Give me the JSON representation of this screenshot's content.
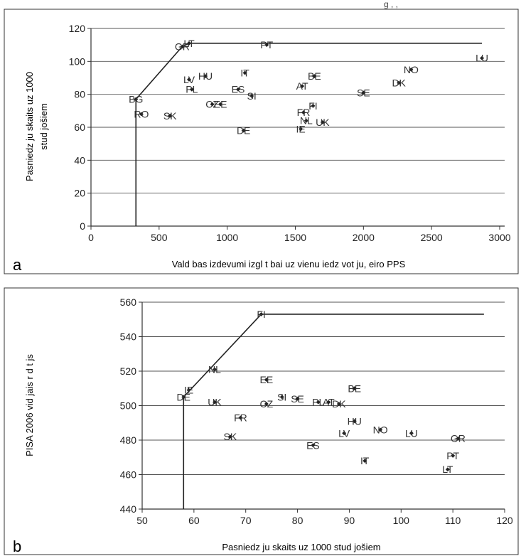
{
  "page": {
    "top_fragment": "g , ,"
  },
  "chart_data": [
    {
      "panel_label": "a",
      "type": "scatter",
      "title": "",
      "xlabel": "Vald bas izdevumi izgl t bai uz vienu iedz vot ju, eiro PPS",
      "ylabel_lines": [
        "Pasniedz ju skaits uz 1000",
        "stud jošiem"
      ],
      "xlim": [
        0,
        3000
      ],
      "ylim": [
        0,
        120
      ],
      "xticks": [
        0,
        500,
        1000,
        1500,
        2000,
        2500,
        3000
      ],
      "yticks": [
        0,
        20,
        40,
        60,
        80,
        100,
        120
      ],
      "grid": "horizontal",
      "points": [
        {
          "label": "LT",
          "x": 720,
          "y": 111
        },
        {
          "label": "PT",
          "x": 1290,
          "y": 110
        },
        {
          "label": "GR",
          "x": 670,
          "y": 109
        },
        {
          "label": "LU",
          "x": 2870,
          "y": 102
        },
        {
          "label": "NO",
          "x": 2350,
          "y": 95
        },
        {
          "label": "IT",
          "x": 1130,
          "y": 93
        },
        {
          "label": "HU",
          "x": 840,
          "y": 91
        },
        {
          "label": "BE",
          "x": 1640,
          "y": 91
        },
        {
          "label": "LV",
          "x": 720,
          "y": 89
        },
        {
          "label": "DK",
          "x": 2260,
          "y": 87
        },
        {
          "label": "AT",
          "x": 1550,
          "y": 85
        },
        {
          "label": "PL",
          "x": 740,
          "y": 83
        },
        {
          "label": "ES",
          "x": 1080,
          "y": 83
        },
        {
          "label": "SE",
          "x": 2000,
          "y": 81
        },
        {
          "label": "SI",
          "x": 1180,
          "y": 79
        },
        {
          "label": "BG",
          "x": 330,
          "y": 77
        },
        {
          "label": "CZ",
          "x": 890,
          "y": 74
        },
        {
          "label": "EE",
          "x": 950,
          "y": 74
        },
        {
          "label": "FI",
          "x": 1630,
          "y": 73
        },
        {
          "label": "FR",
          "x": 1560,
          "y": 69
        },
        {
          "label": "RO",
          "x": 370,
          "y": 68
        },
        {
          "label": "SK",
          "x": 580,
          "y": 67
        },
        {
          "label": "NL",
          "x": 1580,
          "y": 64
        },
        {
          "label": "UK",
          "x": 1700,
          "y": 63
        },
        {
          "label": "IE",
          "x": 1540,
          "y": 59
        },
        {
          "label": "DE",
          "x": 1120,
          "y": 58
        }
      ],
      "frontier": [
        [
          330,
          0
        ],
        [
          330,
          77
        ],
        [
          670,
          109
        ],
        [
          720,
          111
        ],
        [
          2870,
          111
        ]
      ]
    },
    {
      "panel_label": "b",
      "type": "scatter",
      "title": "",
      "xlabel": "Pasniedz ju skaits uz 1000 stud jošiem",
      "ylabel": "PISA 2006 vid jais r d t js",
      "xlim": [
        50,
        120
      ],
      "ylim": [
        440,
        560
      ],
      "xticks": [
        50,
        60,
        70,
        80,
        90,
        100,
        110,
        120
      ],
      "yticks": [
        440,
        460,
        480,
        500,
        520,
        540,
        560
      ],
      "grid": "horizontal",
      "points": [
        {
          "label": "FI",
          "x": 73,
          "y": 553
        },
        {
          "label": "NL",
          "x": 64,
          "y": 521
        },
        {
          "label": "EE",
          "x": 74,
          "y": 515
        },
        {
          "label": "BE",
          "x": 91,
          "y": 510
        },
        {
          "label": "IE",
          "x": 59,
          "y": 509
        },
        {
          "label": "SI",
          "x": 77,
          "y": 505
        },
        {
          "label": "SE",
          "x": 80,
          "y": 504
        },
        {
          "label": "DE",
          "x": 58,
          "y": 505
        },
        {
          "label": "PL",
          "x": 84,
          "y": 502
        },
        {
          "label": "AT",
          "x": 86,
          "y": 502
        },
        {
          "label": "DK",
          "x": 88,
          "y": 501
        },
        {
          "label": "UK",
          "x": 64,
          "y": 502
        },
        {
          "label": "CZ",
          "x": 74,
          "y": 501
        },
        {
          "label": "FR",
          "x": 69,
          "y": 493
        },
        {
          "label": "HU",
          "x": 91,
          "y": 491
        },
        {
          "label": "NO",
          "x": 96,
          "y": 486
        },
        {
          "label": "LV",
          "x": 89,
          "y": 484
        },
        {
          "label": "LU",
          "x": 102,
          "y": 484
        },
        {
          "label": "GR",
          "x": 111,
          "y": 481
        },
        {
          "label": "SK",
          "x": 67,
          "y": 482
        },
        {
          "label": "ES",
          "x": 83,
          "y": 477
        },
        {
          "label": "PT",
          "x": 110,
          "y": 471
        },
        {
          "label": "IT",
          "x": 93,
          "y": 468
        },
        {
          "label": "LT",
          "x": 109,
          "y": 463
        }
      ],
      "frontier": [
        [
          58,
          440
        ],
        [
          58,
          505
        ],
        [
          73,
          553
        ],
        [
          116,
          553
        ]
      ]
    }
  ]
}
